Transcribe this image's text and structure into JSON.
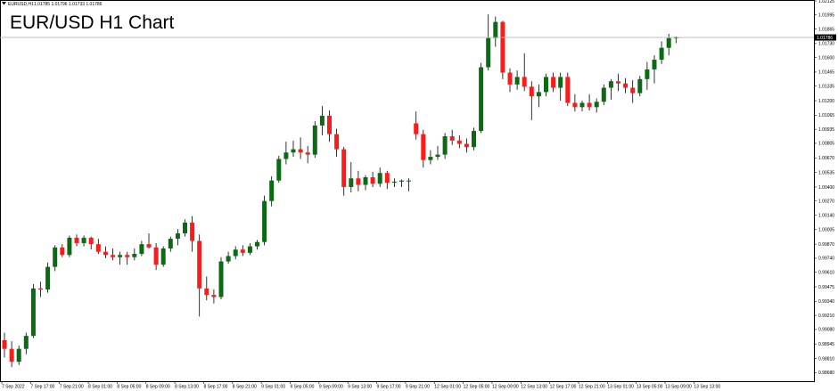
{
  "window": {
    "symbol_label": "EURUSD,H1",
    "ohlc_readout": "1.01785 1.01796 1.01733 1.01786",
    "title": "EUR/USD H1 Chart"
  },
  "colors": {
    "bull": "#0b6b14",
    "bear": "#ff1a1a",
    "wick": "#000000",
    "grid_line": "#b7b7b7",
    "price_tag_bg": "#000000",
    "price_tag_text": "#ffffff"
  },
  "chart_data": {
    "type": "candlestick",
    "symbol": "EURUSD",
    "timeframe": "H1",
    "title": "EUR/USD H1 Chart",
    "ylim": [
      0.986,
      1.02125
    ],
    "y_ticks": [
      "1.02125",
      "1.01995",
      "1.01865",
      "1.01730",
      "1.01600",
      "1.01465",
      "1.01335",
      "1.01200",
      "1.01065",
      "1.00935",
      "1.00805",
      "1.00670",
      "1.00535",
      "1.00400",
      "1.00270",
      "1.00140",
      "1.00005",
      "0.99870",
      "0.99740",
      "0.99610",
      "0.99475",
      "0.99340",
      "0.99210",
      "0.99080",
      "0.98945",
      "0.98810",
      "0.98680"
    ],
    "x_ticks": [
      "7 Sep 2022",
      "7 Sep 17:00",
      "7 Sep 21:00",
      "8 Sep 01:00",
      "8 Sep 05:00",
      "8 Sep 09:00",
      "8 Sep 13:00",
      "8 Sep 17:00",
      "8 Sep 21:00",
      "9 Sep 01:00",
      "9 Sep 05:00",
      "9 Sep 09:00",
      "9 Sep 13:00",
      "9 Sep 17:00",
      "9 Sep 21:00",
      "12 Sep 01:00",
      "12 Sep 05:00",
      "12 Sep 09:00",
      "12 Sep 13:00",
      "12 Sep 17:00",
      "12 Sep 21:00",
      "13 Sep 01:00",
      "13 Sep 05:00",
      "13 Sep 09:00",
      "13 Sep 13:00"
    ],
    "current_price": "1.01786",
    "candles": [
      {
        "o": 0.9898,
        "h": 0.9905,
        "l": 0.9882,
        "c": 0.989
      },
      {
        "o": 0.989,
        "h": 0.9897,
        "l": 0.9873,
        "c": 0.9878
      },
      {
        "o": 0.9878,
        "h": 0.9893,
        "l": 0.9875,
        "c": 0.989
      },
      {
        "o": 0.989,
        "h": 0.9905,
        "l": 0.9885,
        "c": 0.9902
      },
      {
        "o": 0.9902,
        "h": 0.995,
        "l": 0.99,
        "c": 0.9946
      },
      {
        "o": 0.9946,
        "h": 0.9952,
        "l": 0.9938,
        "c": 0.9945
      },
      {
        "o": 0.9945,
        "h": 0.997,
        "l": 0.9942,
        "c": 0.9966
      },
      {
        "o": 0.9966,
        "h": 0.9986,
        "l": 0.9962,
        "c": 0.9984
      },
      {
        "o": 0.9984,
        "h": 0.9987,
        "l": 0.9975,
        "c": 0.9977
      },
      {
        "o": 0.9977,
        "h": 0.9995,
        "l": 0.9975,
        "c": 0.9993
      },
      {
        "o": 0.9993,
        "h": 0.9996,
        "l": 0.9985,
        "c": 0.9988
      },
      {
        "o": 0.9988,
        "h": 0.9995,
        "l": 0.9985,
        "c": 0.9993
      },
      {
        "o": 0.9993,
        "h": 0.9994,
        "l": 0.9982,
        "c": 0.9987
      },
      {
        "o": 0.9987,
        "h": 0.9992,
        "l": 0.9978,
        "c": 0.998
      },
      {
        "o": 0.998,
        "h": 0.9985,
        "l": 0.9974,
        "c": 0.9977
      },
      {
        "o": 0.9977,
        "h": 0.9983,
        "l": 0.9972,
        "c": 0.9975
      },
      {
        "o": 0.9975,
        "h": 0.998,
        "l": 0.9968,
        "c": 0.9977
      },
      {
        "o": 0.9977,
        "h": 0.998,
        "l": 0.9968,
        "c": 0.9975
      },
      {
        "o": 0.9975,
        "h": 0.9983,
        "l": 0.9972,
        "c": 0.9978
      },
      {
        "o": 0.9978,
        "h": 0.999,
        "l": 0.9976,
        "c": 0.9987
      },
      {
        "o": 0.9987,
        "h": 0.9997,
        "l": 0.9983,
        "c": 0.9984
      },
      {
        "o": 0.9984,
        "h": 0.9988,
        "l": 0.9963,
        "c": 0.9968
      },
      {
        "o": 0.9968,
        "h": 0.9985,
        "l": 0.9966,
        "c": 0.9983
      },
      {
        "o": 0.9983,
        "h": 0.9994,
        "l": 0.998,
        "c": 0.9992
      },
      {
        "o": 0.9992,
        "h": 1.0001,
        "l": 0.9986,
        "c": 0.9997
      },
      {
        "o": 0.9997,
        "h": 1.001,
        "l": 0.9994,
        "c": 1.0007
      },
      {
        "o": 1.0007,
        "h": 1.0013,
        "l": 0.998,
        "c": 0.999
      },
      {
        "o": 0.999,
        "h": 0.9996,
        "l": 0.992,
        "c": 0.9946
      },
      {
        "o": 0.9946,
        "h": 0.9957,
        "l": 0.9935,
        "c": 0.994
      },
      {
        "o": 0.994,
        "h": 0.9945,
        "l": 0.9932,
        "c": 0.9938
      },
      {
        "o": 0.9938,
        "h": 0.9975,
        "l": 0.9936,
        "c": 0.9971
      },
      {
        "o": 0.9971,
        "h": 0.998,
        "l": 0.9969,
        "c": 0.9976
      },
      {
        "o": 0.9976,
        "h": 0.9985,
        "l": 0.9973,
        "c": 0.9982
      },
      {
        "o": 0.9982,
        "h": 0.9986,
        "l": 0.9976,
        "c": 0.9979
      },
      {
        "o": 0.9979,
        "h": 0.9988,
        "l": 0.9977,
        "c": 0.9985
      },
      {
        "o": 0.9985,
        "h": 0.9991,
        "l": 0.9982,
        "c": 0.9989
      },
      {
        "o": 0.9989,
        "h": 1.0032,
        "l": 0.9986,
        "c": 1.0027
      },
      {
        "o": 1.0027,
        "h": 1.005,
        "l": 1.0022,
        "c": 1.0046
      },
      {
        "o": 1.0046,
        "h": 1.0069,
        "l": 1.0044,
        "c": 1.0066
      },
      {
        "o": 1.0066,
        "h": 1.0082,
        "l": 1.0061,
        "c": 1.0072
      },
      {
        "o": 1.0072,
        "h": 1.0083,
        "l": 1.0068,
        "c": 1.0075
      },
      {
        "o": 1.0075,
        "h": 1.0086,
        "l": 1.0066,
        "c": 1.0072
      },
      {
        "o": 1.0072,
        "h": 1.0078,
        "l": 1.0062,
        "c": 1.007
      },
      {
        "o": 1.007,
        "h": 1.0101,
        "l": 1.0067,
        "c": 1.0097
      },
      {
        "o": 1.0097,
        "h": 1.0115,
        "l": 1.0088,
        "c": 1.0106
      },
      {
        "o": 1.0106,
        "h": 1.0111,
        "l": 1.0082,
        "c": 1.0089
      },
      {
        "o": 1.0089,
        "h": 1.0094,
        "l": 1.0068,
        "c": 1.0075
      },
      {
        "o": 1.0075,
        "h": 1.0077,
        "l": 1.0032,
        "c": 1.004
      },
      {
        "o": 1.004,
        "h": 1.0063,
        "l": 1.0035,
        "c": 1.0048
      },
      {
        "o": 1.0048,
        "h": 1.0055,
        "l": 1.0036,
        "c": 1.0042
      },
      {
        "o": 1.0042,
        "h": 1.0051,
        "l": 1.0037,
        "c": 1.0049
      },
      {
        "o": 1.0049,
        "h": 1.0054,
        "l": 1.004,
        "c": 1.0043
      },
      {
        "o": 1.0043,
        "h": 1.0058,
        "l": 1.004,
        "c": 1.0053
      },
      {
        "o": 1.0053,
        "h": 1.0055,
        "l": 1.0038,
        "c": 1.0044
      },
      {
        "o": 1.0044,
        "h": 1.0048,
        "l": 1.004,
        "c": 1.0045
      },
      {
        "o": 1.0045,
        "h": 1.0047,
        "l": 1.004,
        "c": 1.0046
      },
      {
        "o": 1.0046,
        "h": 1.0048,
        "l": 1.0036,
        "c": 1.0046
      },
      {
        "o": 1.0099,
        "h": 1.011,
        "l": 1.0084,
        "c": 1.0089
      },
      {
        "o": 1.0089,
        "h": 1.0093,
        "l": 1.0058,
        "c": 1.0065
      },
      {
        "o": 1.0065,
        "h": 1.0074,
        "l": 1.0061,
        "c": 1.0068
      },
      {
        "o": 1.0068,
        "h": 1.0078,
        "l": 1.0065,
        "c": 1.007
      },
      {
        "o": 1.007,
        "h": 1.009,
        "l": 1.0066,
        "c": 1.0087
      },
      {
        "o": 1.0087,
        "h": 1.0093,
        "l": 1.0079,
        "c": 1.0083
      },
      {
        "o": 1.0083,
        "h": 1.0088,
        "l": 1.0076,
        "c": 1.008
      },
      {
        "o": 1.008,
        "h": 1.0085,
        "l": 1.0072,
        "c": 1.0077
      },
      {
        "o": 1.0077,
        "h": 1.0095,
        "l": 1.0074,
        "c": 1.0092
      },
      {
        "o": 1.0092,
        "h": 1.0155,
        "l": 1.009,
        "c": 1.0151
      },
      {
        "o": 1.0151,
        "h": 1.02,
        "l": 1.0148,
        "c": 1.0178
      },
      {
        "o": 1.0178,
        "h": 1.0198,
        "l": 1.017,
        "c": 1.0193
      },
      {
        "o": 1.0193,
        "h": 1.0194,
        "l": 1.014,
        "c": 1.0146
      },
      {
        "o": 1.0146,
        "h": 1.015,
        "l": 1.0128,
        "c": 1.0135
      },
      {
        "o": 1.0135,
        "h": 1.0148,
        "l": 1.013,
        "c": 1.0142
      },
      {
        "o": 1.0142,
        "h": 1.0164,
        "l": 1.0129,
        "c": 1.0133
      },
      {
        "o": 1.0133,
        "h": 1.0138,
        "l": 1.0102,
        "c": 1.0124
      },
      {
        "o": 1.0124,
        "h": 1.0135,
        "l": 1.0114,
        "c": 1.0128
      },
      {
        "o": 1.0128,
        "h": 1.0145,
        "l": 1.0124,
        "c": 1.0142
      },
      {
        "o": 1.0142,
        "h": 1.0146,
        "l": 1.0128,
        "c": 1.0132
      },
      {
        "o": 1.0132,
        "h": 1.0146,
        "l": 1.012,
        "c": 1.0142
      },
      {
        "o": 1.0142,
        "h": 1.0146,
        "l": 1.0115,
        "c": 1.0118
      },
      {
        "o": 1.0118,
        "h": 1.0126,
        "l": 1.011,
        "c": 1.0114
      },
      {
        "o": 1.0114,
        "h": 1.012,
        "l": 1.011,
        "c": 1.0118
      },
      {
        "o": 1.0118,
        "h": 1.0126,
        "l": 1.0111,
        "c": 1.0114
      },
      {
        "o": 1.0114,
        "h": 1.0122,
        "l": 1.0109,
        "c": 1.0119
      },
      {
        "o": 1.0119,
        "h": 1.0135,
        "l": 1.0116,
        "c": 1.0132
      },
      {
        "o": 1.0132,
        "h": 1.014,
        "l": 1.0121,
        "c": 1.0138
      },
      {
        "o": 1.0138,
        "h": 1.0145,
        "l": 1.0129,
        "c": 1.0136
      },
      {
        "o": 1.0136,
        "h": 1.0141,
        "l": 1.0127,
        "c": 1.0132
      },
      {
        "o": 1.0132,
        "h": 1.0139,
        "l": 1.0118,
        "c": 1.0127
      },
      {
        "o": 1.0127,
        "h": 1.0143,
        "l": 1.0124,
        "c": 1.014
      },
      {
        "o": 1.014,
        "h": 1.0156,
        "l": 1.013,
        "c": 1.0149
      },
      {
        "o": 1.0149,
        "h": 1.0162,
        "l": 1.0136,
        "c": 1.0158
      },
      {
        "o": 1.0158,
        "h": 1.0175,
        "l": 1.0154,
        "c": 1.0169
      },
      {
        "o": 1.0169,
        "h": 1.0182,
        "l": 1.0162,
        "c": 1.0178
      },
      {
        "o": 1.01785,
        "h": 1.01796,
        "l": 1.01733,
        "c": 1.01786
      }
    ]
  }
}
